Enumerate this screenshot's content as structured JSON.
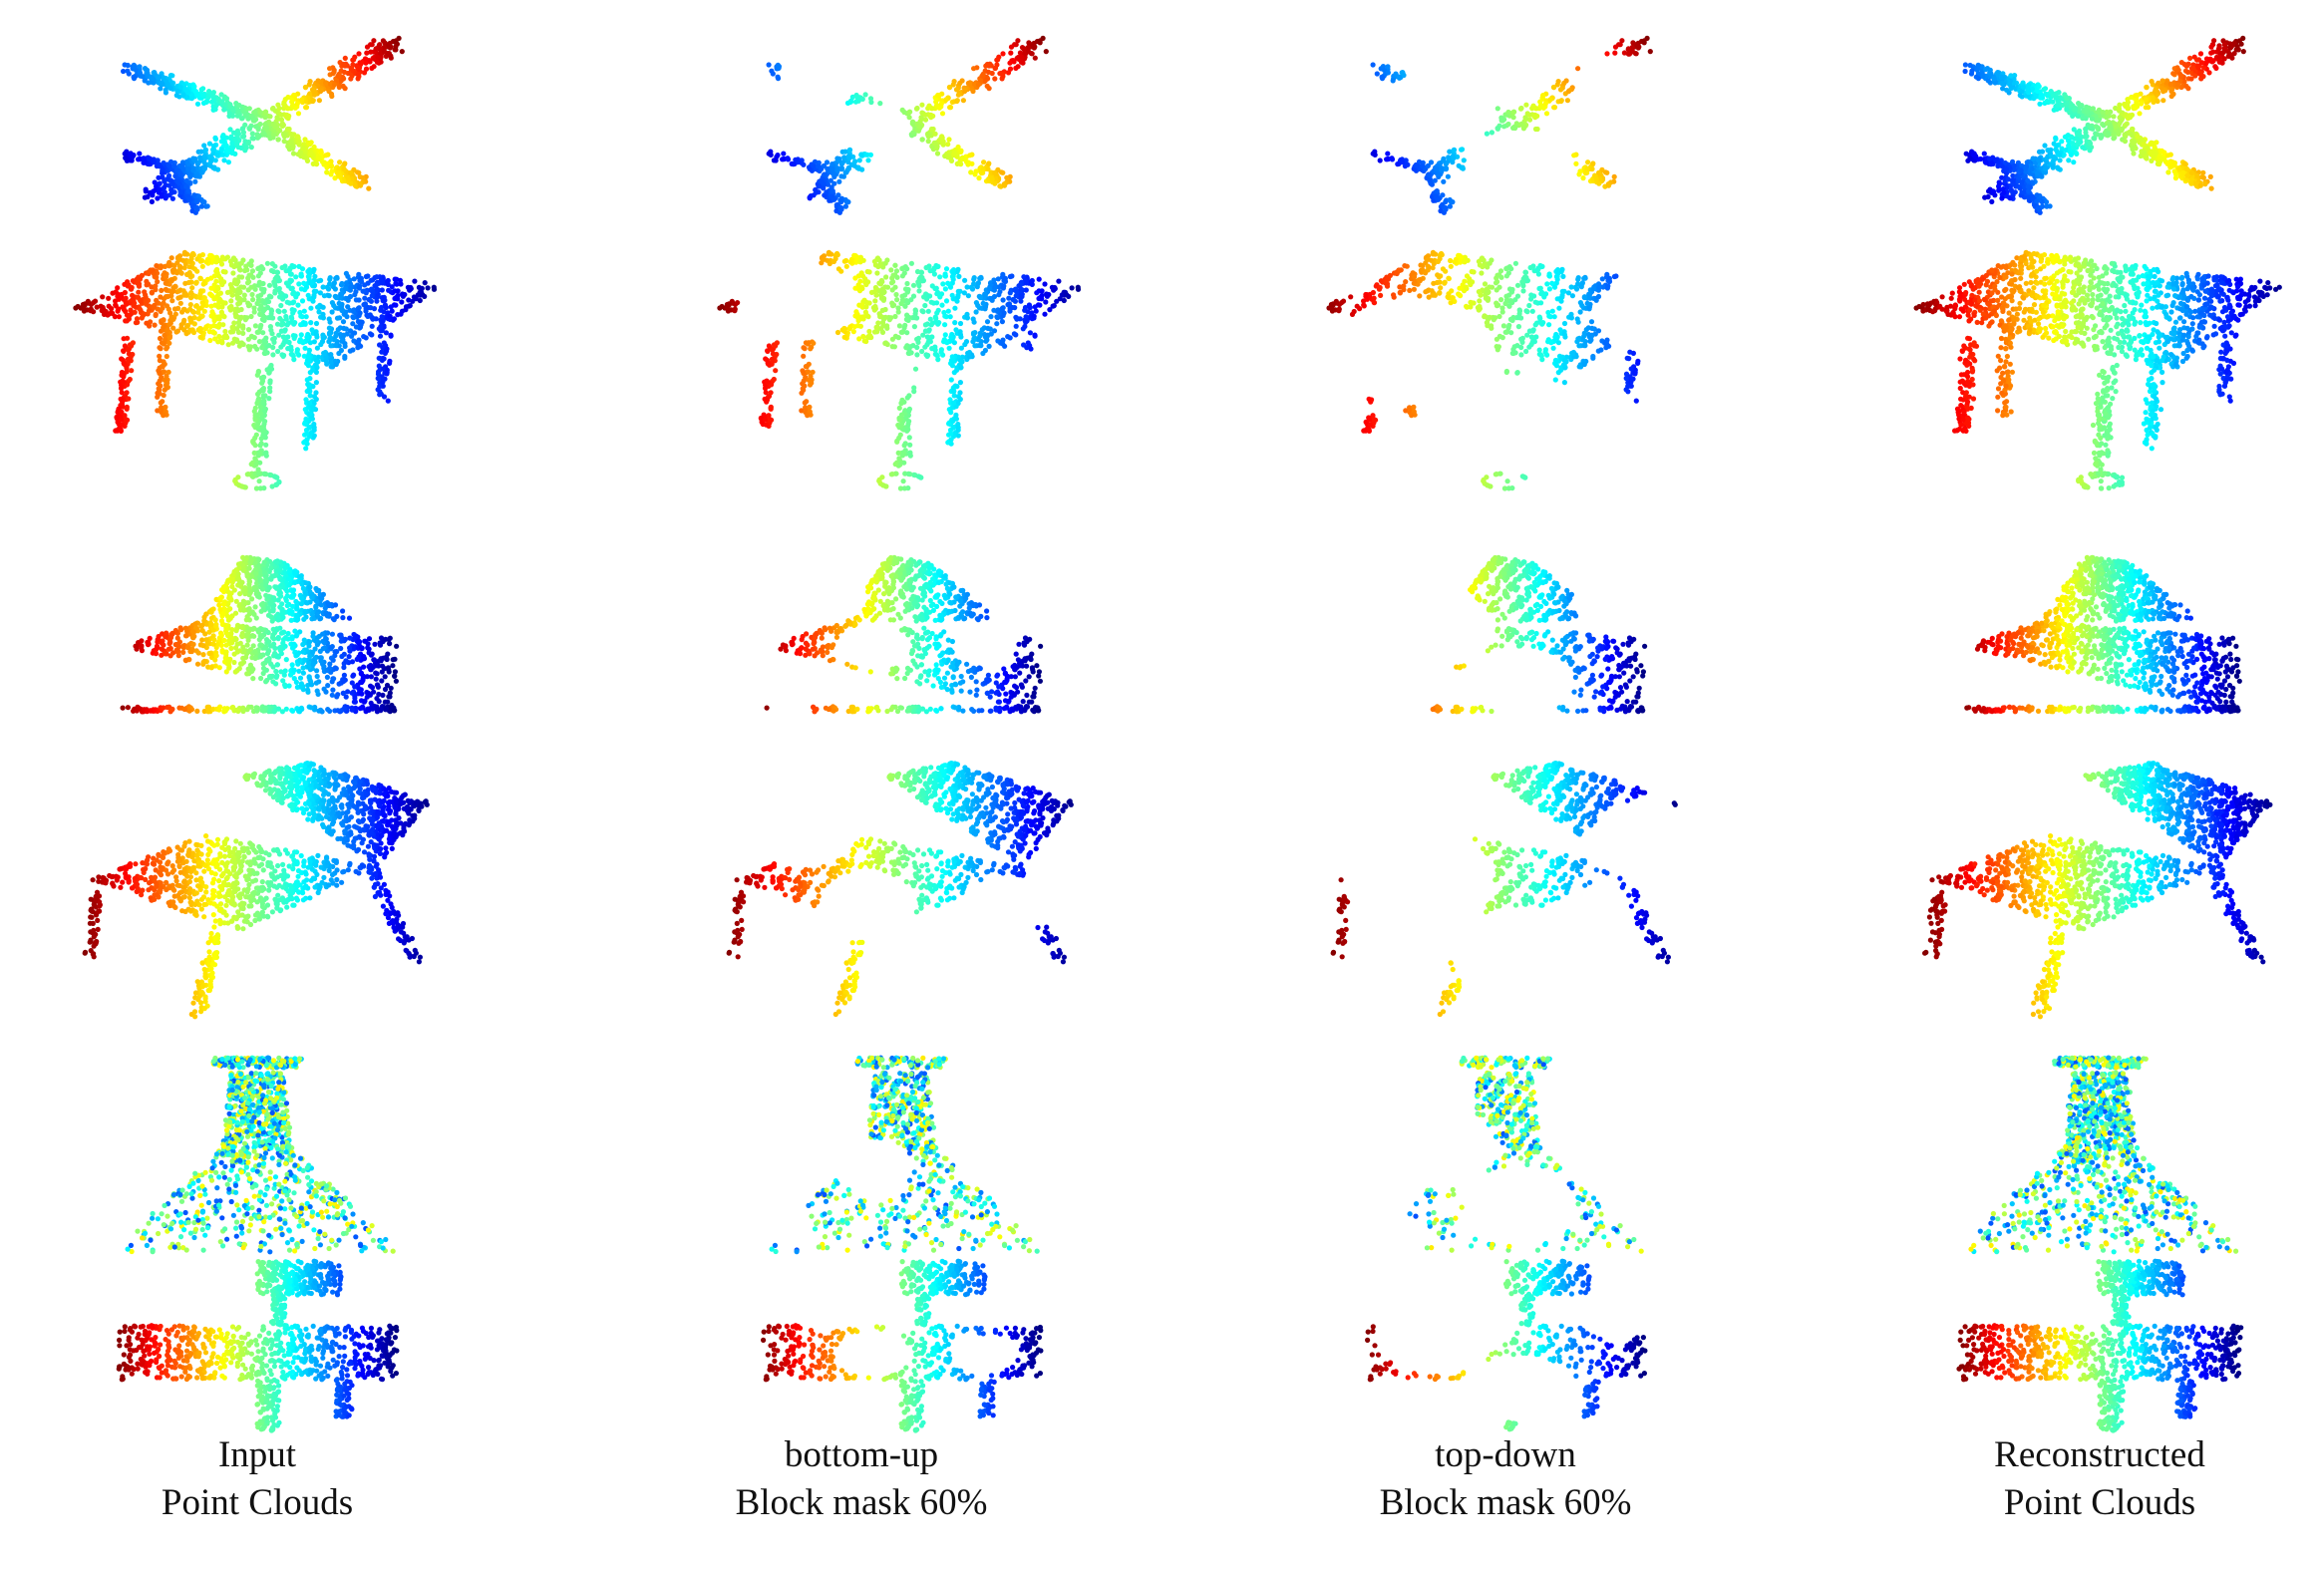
{
  "figure": {
    "columns": [
      {
        "line1": "Input",
        "line2": "Point Clouds"
      },
      {
        "line1": "bottom-up",
        "line2": "Block mask 60%"
      },
      {
        "line1": "top-down",
        "line2": "Block mask 60%"
      },
      {
        "line1": "Reconstructed",
        "line2": "Point Clouds"
      }
    ],
    "rows": [
      {
        "object": "airplane"
      },
      {
        "object": "table"
      },
      {
        "object": "car"
      },
      {
        "object": "chair"
      },
      {
        "object": "lamp"
      },
      {
        "object": "gun"
      }
    ],
    "colormap": [
      "#7f0000",
      "#ff0000",
      "#ff8000",
      "#ffff00",
      "#80ff80",
      "#00ffff",
      "#0080ff",
      "#0000ff",
      "#00007f"
    ]
  }
}
